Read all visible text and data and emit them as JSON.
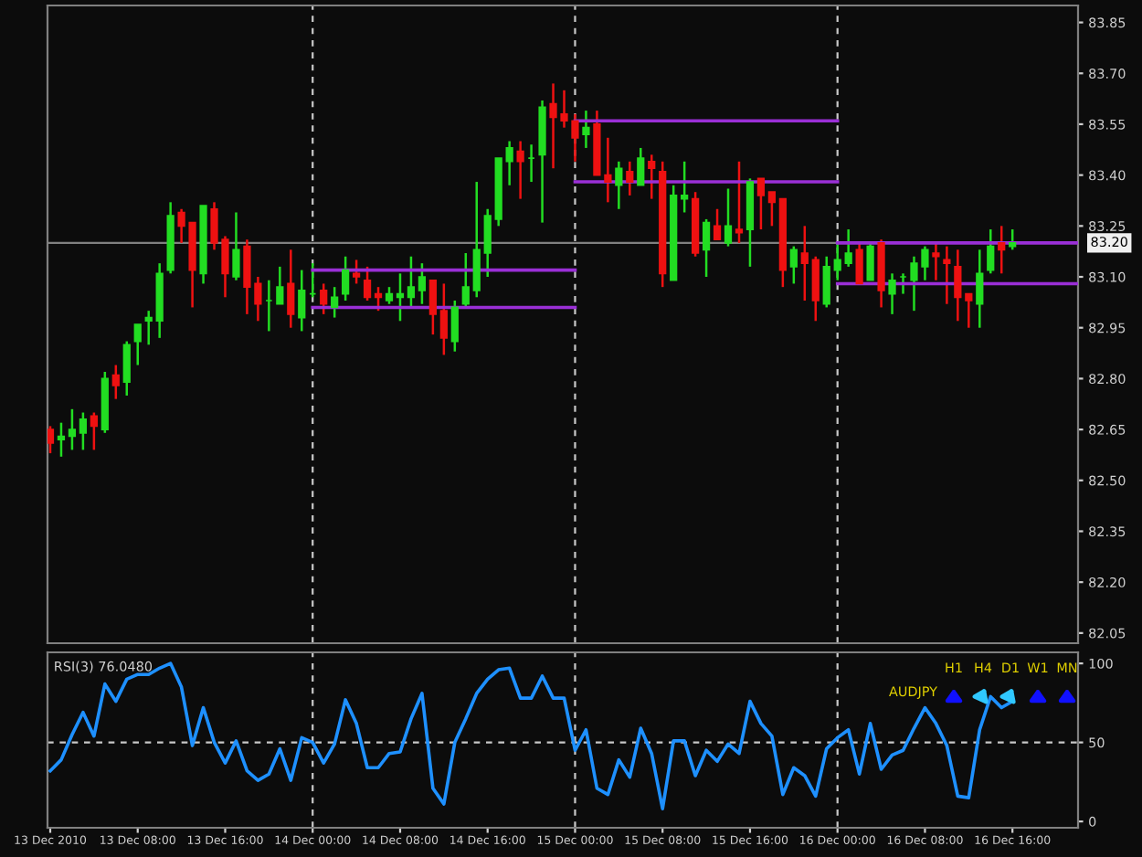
{
  "chart_data": [
    {
      "type": "candlestick",
      "x": [
        "2010-12-13T00:00",
        "2010-12-13T01:00",
        "2010-12-13T02:00",
        "2010-12-13T03:00",
        "2010-12-13T04:00",
        "2010-12-13T05:00",
        "2010-12-13T06:00",
        "2010-12-13T07:00",
        "2010-12-13T08:00",
        "2010-12-13T09:00",
        "2010-12-13T10:00",
        "2010-12-13T11:00",
        "2010-12-13T12:00",
        "2010-12-13T13:00",
        "2010-12-13T14:00",
        "2010-12-13T15:00",
        "2010-12-13T16:00",
        "2010-12-13T17:00",
        "2010-12-13T18:00",
        "2010-12-13T19:00",
        "2010-12-13T20:00",
        "2010-12-13T21:00",
        "2010-12-13T22:00",
        "2010-12-13T23:00",
        "2010-12-14T00:00",
        "2010-12-14T01:00",
        "2010-12-14T02:00",
        "2010-12-14T03:00",
        "2010-12-14T04:00",
        "2010-12-14T05:00",
        "2010-12-14T06:00",
        "2010-12-14T07:00",
        "2010-12-14T08:00",
        "2010-12-14T09:00",
        "2010-12-14T10:00",
        "2010-12-14T11:00",
        "2010-12-14T12:00",
        "2010-12-14T13:00",
        "2010-12-14T14:00",
        "2010-12-14T15:00",
        "2010-12-14T16:00",
        "2010-12-14T17:00",
        "2010-12-14T18:00",
        "2010-12-14T19:00",
        "2010-12-14T20:00",
        "2010-12-14T21:00",
        "2010-12-14T22:00",
        "2010-12-14T23:00",
        "2010-12-15T00:00",
        "2010-12-15T01:00",
        "2010-12-15T02:00",
        "2010-12-15T03:00",
        "2010-12-15T04:00",
        "2010-12-15T05:00",
        "2010-12-15T06:00",
        "2010-12-15T07:00",
        "2010-12-15T08:00",
        "2010-12-15T09:00",
        "2010-12-15T10:00",
        "2010-12-15T11:00",
        "2010-12-15T12:00",
        "2010-12-15T13:00",
        "2010-12-15T14:00",
        "2010-12-15T15:00",
        "2010-12-15T16:00",
        "2010-12-15T17:00",
        "2010-12-15T18:00",
        "2010-12-15T19:00",
        "2010-12-15T20:00",
        "2010-12-15T21:00",
        "2010-12-15T22:00",
        "2010-12-15T23:00",
        "2010-12-16T00:00",
        "2010-12-16T01:00",
        "2010-12-16T02:00",
        "2010-12-16T03:00",
        "2010-12-16T04:00",
        "2010-12-16T05:00",
        "2010-12-16T06:00",
        "2010-12-16T07:00",
        "2010-12-16T08:00",
        "2010-12-16T09:00",
        "2010-12-16T10:00",
        "2010-12-16T11:00",
        "2010-12-16T12:00",
        "2010-12-16T13:00",
        "2010-12-16T14:00",
        "2010-12-16T15:00",
        "2010-12-16T16:00"
      ],
      "ohlc": [
        [
          82.65,
          82.66,
          82.58,
          82.61
        ],
        [
          82.62,
          82.67,
          82.57,
          82.63
        ],
        [
          82.63,
          82.71,
          82.59,
          82.65
        ],
        [
          82.64,
          82.7,
          82.59,
          82.68
        ],
        [
          82.69,
          82.7,
          82.59,
          82.66
        ],
        [
          82.65,
          82.82,
          82.64,
          82.8
        ],
        [
          82.81,
          82.84,
          82.74,
          82.78
        ],
        [
          82.79,
          82.91,
          82.75,
          82.9
        ],
        [
          82.91,
          82.96,
          82.84,
          82.96
        ],
        [
          82.97,
          83.0,
          82.9,
          82.98
        ],
        [
          82.97,
          83.14,
          82.92,
          83.11
        ],
        [
          83.12,
          83.32,
          83.11,
          83.28
        ],
        [
          83.29,
          83.3,
          83.2,
          83.25
        ],
        [
          83.26,
          83.26,
          83.01,
          83.12
        ],
        [
          83.11,
          83.31,
          83.08,
          83.31
        ],
        [
          83.3,
          83.32,
          83.18,
          83.2
        ],
        [
          83.21,
          83.22,
          83.04,
          83.11
        ],
        [
          83.1,
          83.29,
          83.09,
          83.18
        ],
        [
          83.19,
          83.21,
          82.99,
          83.07
        ],
        [
          83.08,
          83.1,
          82.97,
          83.02
        ],
        [
          83.03,
          83.09,
          82.94,
          83.03
        ],
        [
          83.02,
          83.13,
          83.02,
          83.07
        ],
        [
          83.08,
          83.18,
          82.95,
          82.99
        ],
        [
          82.98,
          83.12,
          82.94,
          83.06
        ],
        [
          83.05,
          83.14,
          83.04,
          83.05
        ],
        [
          83.06,
          83.08,
          82.99,
          83.02
        ],
        [
          83.01,
          83.07,
          82.98,
          83.04
        ],
        [
          83.05,
          83.16,
          83.03,
          83.12
        ],
        [
          83.11,
          83.15,
          83.08,
          83.1
        ],
        [
          83.09,
          83.13,
          83.03,
          83.04
        ],
        [
          83.05,
          83.07,
          83.0,
          83.04
        ],
        [
          83.03,
          83.07,
          83.02,
          83.05
        ],
        [
          83.04,
          83.11,
          82.97,
          83.05
        ],
        [
          83.04,
          83.16,
          83.01,
          83.07
        ],
        [
          83.06,
          83.14,
          83.02,
          83.1
        ],
        [
          83.09,
          83.09,
          82.93,
          82.99
        ],
        [
          83.0,
          83.08,
          82.87,
          82.92
        ],
        [
          82.91,
          83.03,
          82.88,
          83.01
        ],
        [
          83.02,
          83.17,
          83.01,
          83.07
        ],
        [
          83.06,
          83.38,
          83.04,
          83.18
        ],
        [
          83.17,
          83.3,
          83.1,
          83.28
        ],
        [
          83.27,
          83.45,
          83.25,
          83.45
        ],
        [
          83.44,
          83.5,
          83.37,
          83.48
        ],
        [
          83.47,
          83.5,
          83.33,
          83.44
        ],
        [
          83.45,
          83.49,
          83.38,
          83.45
        ],
        [
          83.46,
          83.62,
          83.26,
          83.6
        ],
        [
          83.61,
          83.67,
          83.42,
          83.57
        ],
        [
          83.58,
          83.65,
          83.54,
          83.56
        ],
        [
          83.56,
          83.58,
          83.44,
          83.51
        ],
        [
          83.52,
          83.59,
          83.48,
          83.54
        ],
        [
          83.55,
          83.59,
          83.4,
          83.4
        ],
        [
          83.4,
          83.51,
          83.32,
          83.38
        ],
        [
          83.37,
          83.44,
          83.3,
          83.42
        ],
        [
          83.41,
          83.44,
          83.34,
          83.38
        ],
        [
          83.37,
          83.48,
          83.37,
          83.45
        ],
        [
          83.44,
          83.46,
          83.33,
          83.42
        ],
        [
          83.41,
          83.44,
          83.07,
          83.11
        ],
        [
          83.09,
          83.37,
          83.09,
          83.34
        ],
        [
          83.33,
          83.44,
          83.29,
          83.34
        ],
        [
          83.33,
          83.35,
          83.16,
          83.17
        ],
        [
          83.18,
          83.27,
          83.1,
          83.26
        ],
        [
          83.25,
          83.3,
          83.21,
          83.21
        ],
        [
          83.2,
          83.36,
          83.19,
          83.25
        ],
        [
          83.24,
          83.44,
          83.2,
          83.23
        ],
        [
          83.24,
          83.39,
          83.13,
          83.38
        ],
        [
          83.39,
          83.39,
          83.24,
          83.34
        ],
        [
          83.35,
          83.35,
          83.25,
          83.32
        ],
        [
          83.33,
          83.33,
          83.07,
          83.12
        ],
        [
          83.13,
          83.19,
          83.08,
          83.18
        ],
        [
          83.17,
          83.25,
          83.03,
          83.14
        ],
        [
          83.15,
          83.16,
          82.97,
          83.03
        ],
        [
          83.02,
          83.16,
          83.01,
          83.13
        ],
        [
          83.12,
          83.2,
          83.09,
          83.15
        ],
        [
          83.14,
          83.24,
          83.13,
          83.17
        ],
        [
          83.18,
          83.2,
          83.08,
          83.08
        ],
        [
          83.09,
          83.2,
          83.09,
          83.19
        ],
        [
          83.2,
          83.21,
          83.01,
          83.06
        ],
        [
          83.05,
          83.11,
          82.99,
          83.09
        ],
        [
          83.1,
          83.11,
          83.05,
          83.1
        ],
        [
          83.09,
          83.16,
          83.0,
          83.14
        ],
        [
          83.13,
          83.19,
          83.09,
          83.18
        ],
        [
          83.17,
          83.2,
          83.09,
          83.16
        ],
        [
          83.15,
          83.19,
          83.02,
          83.14
        ],
        [
          83.13,
          83.18,
          82.97,
          83.04
        ],
        [
          83.05,
          83.05,
          82.95,
          83.03
        ],
        [
          83.02,
          83.18,
          82.95,
          83.11
        ],
        [
          83.12,
          83.24,
          83.11,
          83.19
        ],
        [
          83.2,
          83.25,
          83.11,
          83.18
        ],
        [
          83.19,
          83.24,
          83.18,
          83.2
        ]
      ],
      "colors": [
        "#ee1111",
        "#22dd22",
        "#22dd22",
        "#22dd22",
        "#ee1111",
        "#22dd22",
        "#ee1111",
        "#22dd22",
        "#22dd22",
        "#22dd22",
        "#22dd22",
        "#22dd22",
        "#ee1111",
        "#ee1111",
        "#22dd22",
        "#ee1111",
        "#ee1111",
        "#22dd22",
        "#ee1111",
        "#ee1111",
        "#22dd22",
        "#22dd22",
        "#ee1111",
        "#22dd22",
        "#22dd22",
        "#ee1111",
        "#22dd22",
        "#22dd22",
        "#ee1111",
        "#ee1111",
        "#ee1111",
        "#22dd22",
        "#22dd22",
        "#22dd22",
        "#22dd22",
        "#ee1111",
        "#ee1111",
        "#22dd22",
        "#22dd22",
        "#22dd22",
        "#22dd22",
        "#22dd22",
        "#22dd22",
        "#ee1111",
        "#22dd22",
        "#22dd22",
        "#ee1111",
        "#ee1111",
        "#ee1111",
        "#22dd22",
        "#ee1111",
        "#ee1111",
        "#22dd22",
        "#ee1111",
        "#22dd22",
        "#ee1111",
        "#ee1111",
        "#22dd22",
        "#22dd22",
        "#ee1111",
        "#22dd22",
        "#ee1111",
        "#22dd22",
        "#ee1111",
        "#22dd22",
        "#ee1111",
        "#ee1111",
        "#ee1111",
        "#22dd22",
        "#ee1111",
        "#ee1111",
        "#22dd22",
        "#22dd22",
        "#22dd22",
        "#ee1111",
        "#22dd22",
        "#ee1111",
        "#22dd22",
        "#22dd22",
        "#22dd22",
        "#22dd22",
        "#ee1111",
        "#ee1111",
        "#ee1111",
        "#ee1111",
        "#22dd22",
        "#22dd22",
        "#ee1111",
        "#22dd22"
      ],
      "series": [
        {
          "type": "line",
          "color": "#9a2fd6",
          "x": [
            "2010-12-14T00:00",
            "2010-12-15T00:00"
          ],
          "values": [
            83.12,
            83.12
          ]
        },
        {
          "type": "line",
          "color": "#9a2fd6",
          "x": [
            "2010-12-14T00:00",
            "2010-12-15T00:00"
          ],
          "values": [
            83.01,
            83.01
          ]
        },
        {
          "type": "line",
          "color": "#9a2fd6",
          "x": [
            "2010-12-15T00:00",
            "2010-12-16T00:00"
          ],
          "values": [
            83.56,
            83.56
          ]
        },
        {
          "type": "line",
          "color": "#9a2fd6",
          "x": [
            "2010-12-15T00:00",
            "2010-12-16T00:00"
          ],
          "values": [
            83.38,
            83.38
          ]
        },
        {
          "type": "line",
          "color": "#9a2fd6",
          "x": [
            "2010-12-16T00:00",
            "2010-12-16T22:00"
          ],
          "values": [
            83.2,
            83.2
          ]
        },
        {
          "type": "line",
          "color": "#9a2fd6",
          "x": [
            "2010-12-16T00:00",
            "2010-12-16T22:00"
          ],
          "values": [
            83.08,
            83.08
          ]
        }
      ],
      "xlim": [
        "2010-12-12T23:45",
        "2010-12-16T22:00"
      ],
      "ylim": [
        82.02,
        83.9
      ],
      "yticks": [
        {
          "value": 83.85,
          "label": "83.85"
        },
        {
          "value": 83.7,
          "label": "83.70"
        },
        {
          "value": 83.55,
          "label": "83.55"
        },
        {
          "value": 83.4,
          "label": "83.40"
        },
        {
          "value": 83.25,
          "label": "83.25"
        },
        {
          "value": 83.1,
          "label": "83.10"
        },
        {
          "value": 82.95,
          "label": "82.95"
        },
        {
          "value": 82.8,
          "label": "82.80"
        },
        {
          "value": 82.65,
          "label": "82.65"
        },
        {
          "value": 82.5,
          "label": "82.50"
        },
        {
          "value": 82.35,
          "label": "82.35"
        },
        {
          "value": 82.2,
          "label": "82.20"
        },
        {
          "value": 82.05,
          "label": "82.05"
        }
      ],
      "tick_labels": "y",
      "ref_lines": [
        {
          "axis": "y",
          "value": 83.2,
          "label": "83.20",
          "color": "#808080",
          "line_style": "solid"
        },
        {
          "axis": "x",
          "value": "2010-12-14T00:00",
          "color": "#c8c8c8",
          "line_style": "dashed"
        },
        {
          "axis": "x",
          "value": "2010-12-15T00:00",
          "color": "#c8c8c8",
          "line_style": "dashed"
        },
        {
          "axis": "x",
          "value": "2010-12-16T00:00",
          "color": "#c8c8c8",
          "line_style": "dashed"
        }
      ]
    },
    {
      "type": "line",
      "title": "RSI(3) 76.0480",
      "x": [
        "2010-12-13T00:00",
        "2010-12-13T01:00",
        "2010-12-13T02:00",
        "2010-12-13T03:00",
        "2010-12-13T04:00",
        "2010-12-13T05:00",
        "2010-12-13T06:00",
        "2010-12-13T07:00",
        "2010-12-13T08:00",
        "2010-12-13T09:00",
        "2010-12-13T10:00",
        "2010-12-13T11:00",
        "2010-12-13T12:00",
        "2010-12-13T13:00",
        "2010-12-13T14:00",
        "2010-12-13T15:00",
        "2010-12-13T16:00",
        "2010-12-13T17:00",
        "2010-12-13T18:00",
        "2010-12-13T19:00",
        "2010-12-13T20:00",
        "2010-12-13T21:00",
        "2010-12-13T22:00",
        "2010-12-13T23:00",
        "2010-12-14T00:00",
        "2010-12-14T01:00",
        "2010-12-14T02:00",
        "2010-12-14T03:00",
        "2010-12-14T04:00",
        "2010-12-14T05:00",
        "2010-12-14T06:00",
        "2010-12-14T07:00",
        "2010-12-14T08:00",
        "2010-12-14T09:00",
        "2010-12-14T10:00",
        "2010-12-14T11:00",
        "2010-12-14T12:00",
        "2010-12-14T13:00",
        "2010-12-14T14:00",
        "2010-12-14T15:00",
        "2010-12-14T16:00",
        "2010-12-14T17:00",
        "2010-12-14T18:00",
        "2010-12-14T19:00",
        "2010-12-14T20:00",
        "2010-12-14T21:00",
        "2010-12-14T22:00",
        "2010-12-14T23:00",
        "2010-12-15T00:00",
        "2010-12-15T01:00",
        "2010-12-15T02:00",
        "2010-12-15T03:00",
        "2010-12-15T04:00",
        "2010-12-15T05:00",
        "2010-12-15T06:00",
        "2010-12-15T07:00",
        "2010-12-15T08:00",
        "2010-12-15T09:00",
        "2010-12-15T10:00",
        "2010-12-15T11:00",
        "2010-12-15T12:00",
        "2010-12-15T13:00",
        "2010-12-15T14:00",
        "2010-12-15T15:00",
        "2010-12-15T16:00",
        "2010-12-15T17:00",
        "2010-12-15T18:00",
        "2010-12-15T19:00",
        "2010-12-15T20:00",
        "2010-12-15T21:00",
        "2010-12-15T22:00",
        "2010-12-15T23:00",
        "2010-12-16T00:00",
        "2010-12-16T01:00",
        "2010-12-16T02:00",
        "2010-12-16T03:00",
        "2010-12-16T04:00",
        "2010-12-16T05:00",
        "2010-12-16T06:00",
        "2010-12-16T07:00",
        "2010-12-16T08:00",
        "2010-12-16T09:00",
        "2010-12-16T10:00",
        "2010-12-16T11:00",
        "2010-12-16T12:00",
        "2010-12-16T13:00",
        "2010-12-16T14:00",
        "2010-12-16T15:00",
        "2010-12-16T16:00"
      ],
      "series": [
        {
          "color": "#1e90ff",
          "values": [
            32,
            39,
            55,
            69,
            54,
            87,
            76,
            90,
            93,
            93,
            97,
            100,
            85,
            48,
            72,
            50,
            37,
            51,
            32,
            26,
            30,
            46,
            26,
            53,
            50,
            37,
            49,
            77,
            62,
            34,
            34,
            43,
            44,
            65,
            81,
            21,
            11,
            50,
            65,
            81,
            90,
            96,
            97,
            78,
            78,
            92,
            78,
            78,
            45,
            58,
            21,
            17,
            39,
            28,
            59,
            43,
            8,
            51,
            51,
            29,
            45,
            38,
            49,
            43,
            76,
            62,
            54,
            17,
            34,
            29,
            16,
            46,
            53,
            58,
            30,
            62,
            33,
            42,
            45,
            59,
            72,
            62,
            48,
            16,
            15,
            58,
            79,
            72,
            76
          ]
        }
      ],
      "xlim": [
        "2010-12-12T23:45",
        "2010-12-16T22:00"
      ],
      "ylim": [
        -4,
        107
      ],
      "yticks": [
        0,
        50,
        100
      ],
      "xticks": [
        {
          "value": "2010-12-13T00:00",
          "label": "13 Dec 2010"
        },
        {
          "value": "2010-12-13T08:00",
          "label": "13 Dec 08:00"
        },
        {
          "value": "2010-12-13T16:00",
          "label": "13 Dec 16:00"
        },
        {
          "value": "2010-12-14T00:00",
          "label": "14 Dec 00:00"
        },
        {
          "value": "2010-12-14T08:00",
          "label": "14 Dec 08:00"
        },
        {
          "value": "2010-12-14T16:00",
          "label": "14 Dec 16:00"
        },
        {
          "value": "2010-12-15T00:00",
          "label": "15 Dec 00:00"
        },
        {
          "value": "2010-12-15T08:00",
          "label": "15 Dec 08:00"
        },
        {
          "value": "2010-12-15T16:00",
          "label": "15 Dec 16:00"
        },
        {
          "value": "2010-12-16T00:00",
          "label": "16 Dec 00:00"
        },
        {
          "value": "2010-12-16T08:00",
          "label": "16 Dec 08:00"
        },
        {
          "value": "2010-12-16T16:00",
          "label": "16 Dec 16:00"
        }
      ],
      "ref_lines": [
        {
          "axis": "y",
          "value": 50,
          "color": "#c8c8c8",
          "line_style": "dashed"
        },
        {
          "axis": "x",
          "value": "2010-12-14T00:00",
          "color": "#c8c8c8",
          "line_style": "dashed"
        },
        {
          "axis": "x",
          "value": "2010-12-15T00:00",
          "color": "#c8c8c8",
          "line_style": "dashed"
        },
        {
          "axis": "x",
          "value": "2010-12-16T00:00",
          "color": "#c8c8c8",
          "line_style": "dashed"
        }
      ],
      "annotations": [
        "H1",
        "H4",
        "D1",
        "W1",
        "MN",
        "AUDJPY"
      ]
    }
  ]
}
